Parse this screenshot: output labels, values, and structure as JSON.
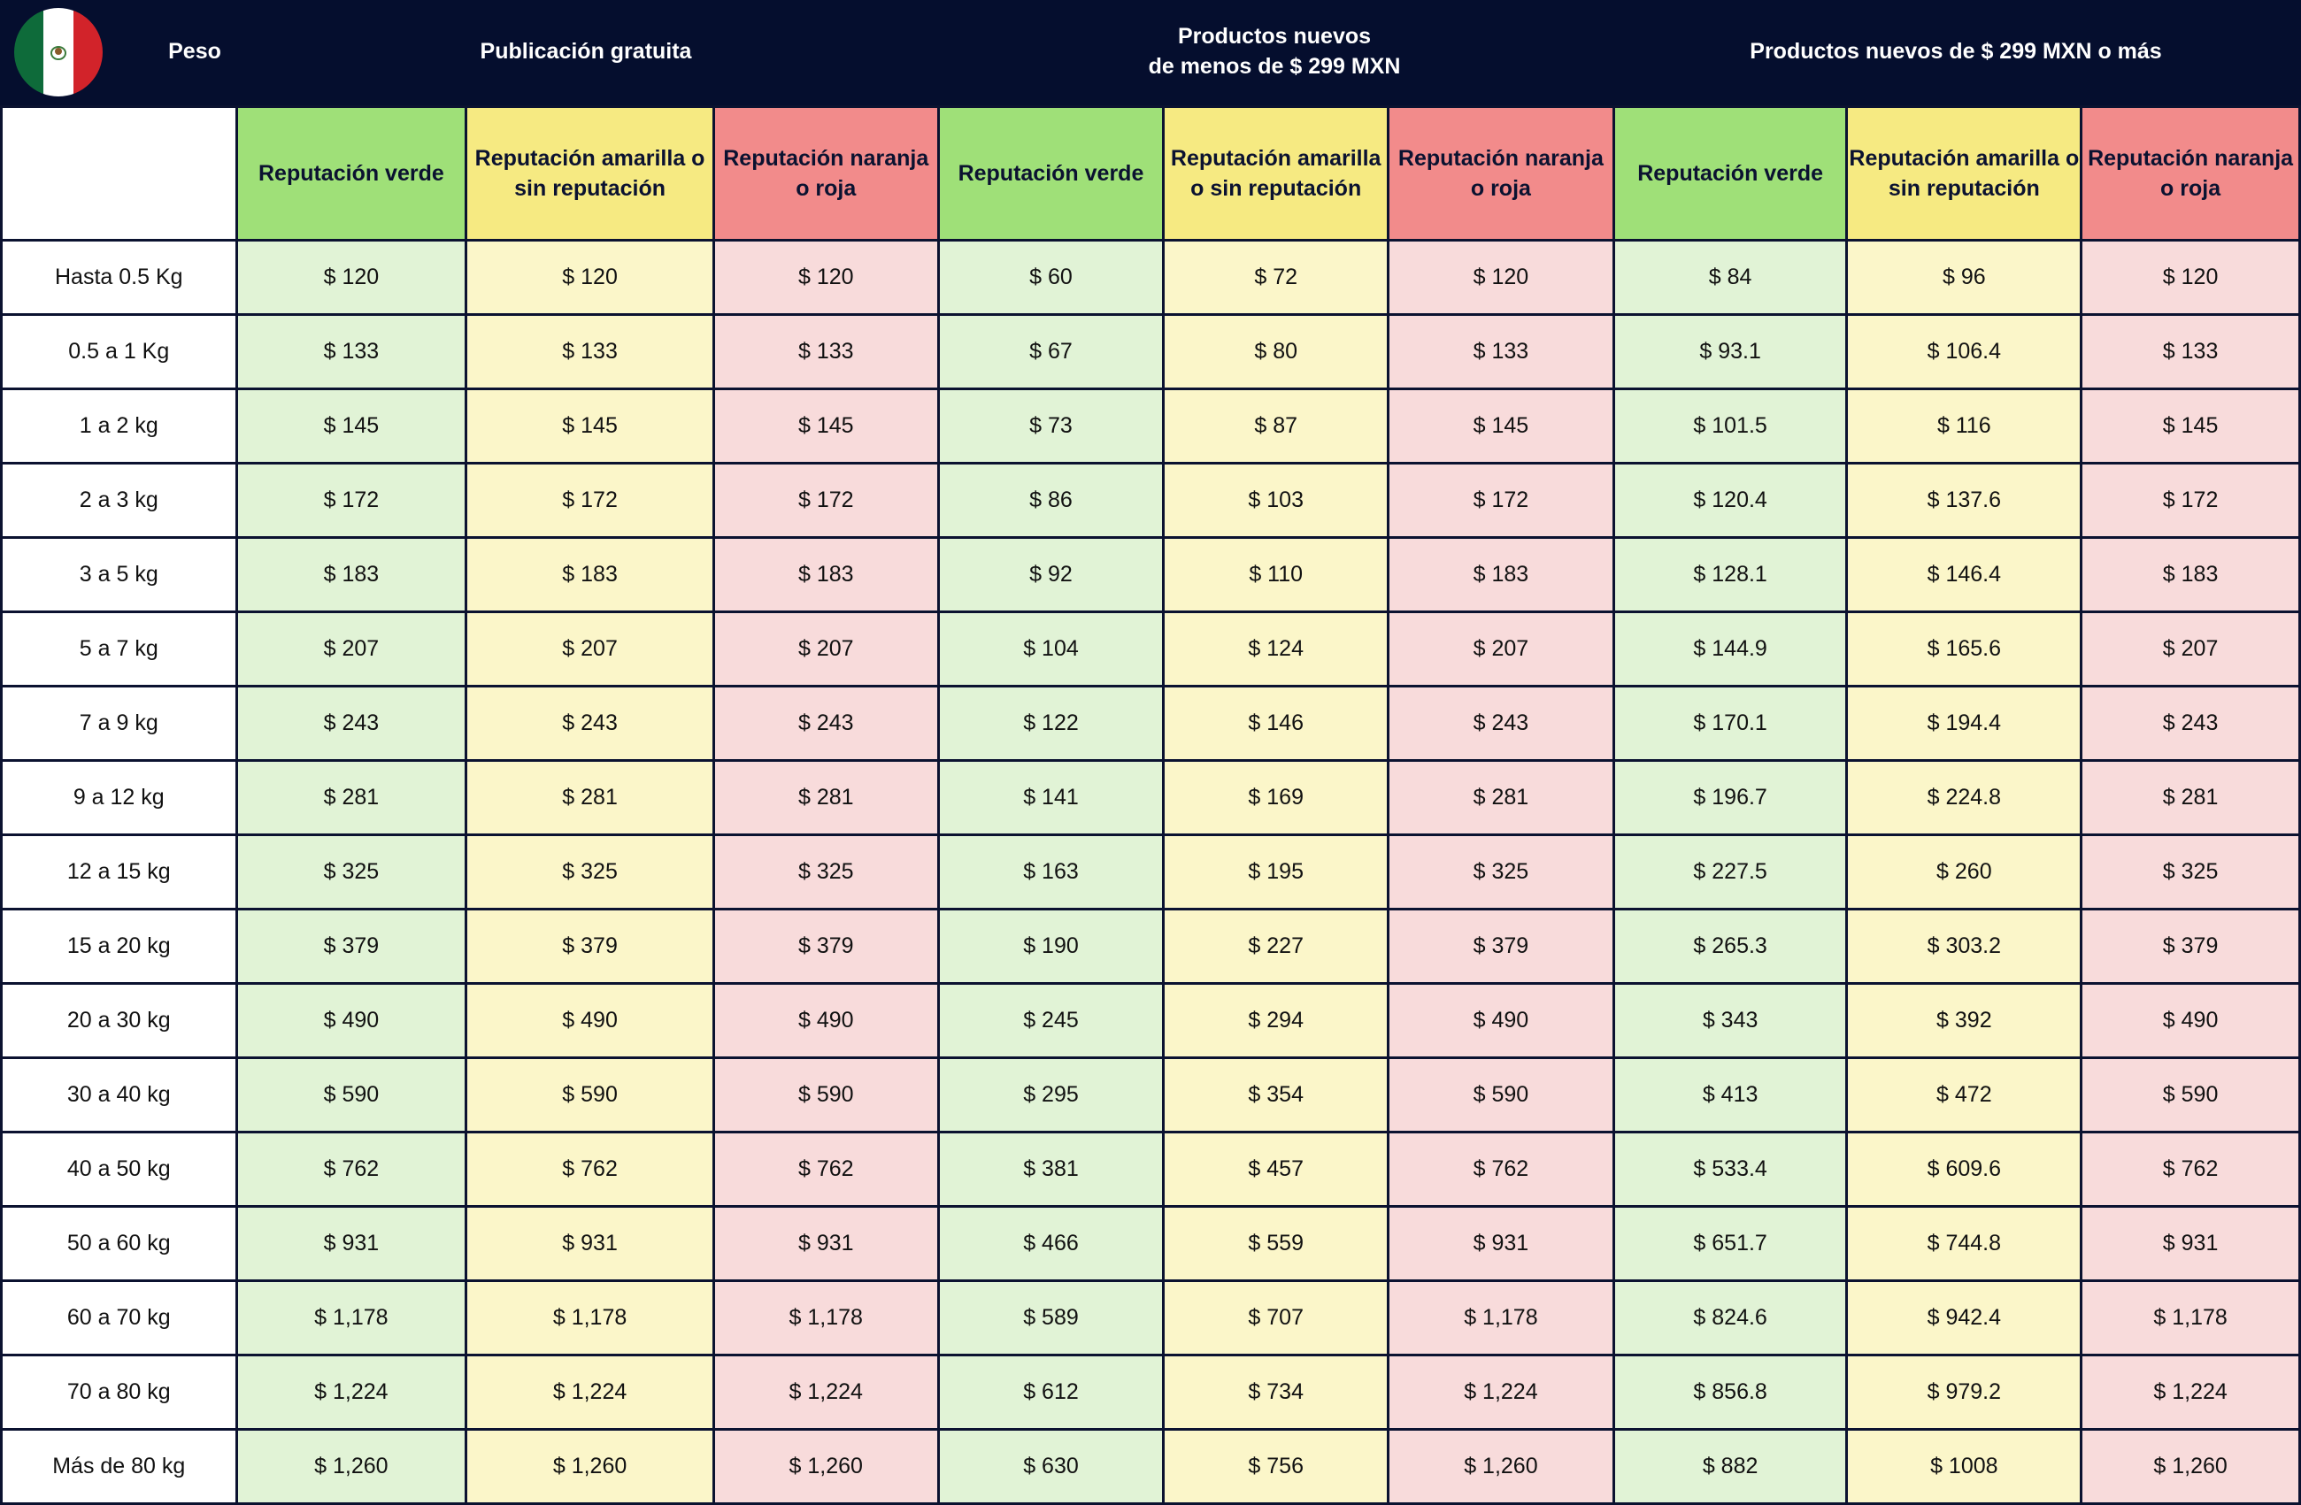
{
  "header": {
    "peso": "Peso",
    "publicacion_gratuita": "Publicación gratuita",
    "productos_menos_line1": "Productos nuevos",
    "productos_menos_line2": "de menos de $ 299 MXN",
    "productos_mas": "Productos nuevos de $ 299 MXN o más",
    "flag_icon": "mexico-flag-icon"
  },
  "colors": {
    "header_bg": "#050e2e",
    "green_header": "#9fe078",
    "yellow_header": "#f6ea82",
    "red_header": "#f28b8b",
    "green_cell": "#e1f3d6",
    "yellow_cell": "#fbf6c9",
    "red_cell": "#f8dbdb"
  },
  "columns": [
    "Reputación verde",
    "Reputación amarilla o sin reputación",
    "Reputación naranja o roja",
    "Reputación verde",
    "Reputación amarilla o sin reputación",
    "Reputación naranja o roja",
    "Reputación verde",
    "Reputación amarilla o sin reputación",
    "Reputación naranja o roja"
  ],
  "rows": [
    {
      "weight": "Hasta 0.5 Kg",
      "values": [
        "$ 120",
        "$ 120",
        "$ 120",
        "$ 60",
        "$ 72",
        "$ 120",
        "$ 84",
        "$ 96",
        "$ 120"
      ]
    },
    {
      "weight": "0.5 a 1 Kg",
      "values": [
        "$ 133",
        "$ 133",
        "$ 133",
        "$ 67",
        "$ 80",
        "$ 133",
        "$ 93.1",
        "$ 106.4",
        "$ 133"
      ]
    },
    {
      "weight": "1 a 2 kg",
      "values": [
        "$ 145",
        "$ 145",
        "$ 145",
        "$ 73",
        "$ 87",
        "$ 145",
        "$ 101.5",
        "$ 116",
        "$ 145"
      ]
    },
    {
      "weight": "2 a 3 kg",
      "values": [
        "$ 172",
        "$ 172",
        "$ 172",
        "$ 86",
        "$ 103",
        "$ 172",
        "$ 120.4",
        "$ 137.6",
        "$ 172"
      ]
    },
    {
      "weight": "3 a 5 kg",
      "values": [
        "$ 183",
        "$ 183",
        "$ 183",
        "$ 92",
        "$ 110",
        "$ 183",
        "$ 128.1",
        "$ 146.4",
        "$ 183"
      ]
    },
    {
      "weight": "5 a 7 kg",
      "values": [
        "$ 207",
        "$ 207",
        "$ 207",
        "$ 104",
        "$ 124",
        "$ 207",
        "$ 144.9",
        "$ 165.6",
        "$ 207"
      ]
    },
    {
      "weight": "7 a 9 kg",
      "values": [
        "$ 243",
        "$ 243",
        "$ 243",
        "$ 122",
        "$ 146",
        "$ 243",
        "$ 170.1",
        "$ 194.4",
        "$ 243"
      ]
    },
    {
      "weight": "9 a 12 kg",
      "values": [
        "$ 281",
        "$ 281",
        "$ 281",
        "$ 141",
        "$ 169",
        "$ 281",
        "$ 196.7",
        "$ 224.8",
        "$ 281"
      ]
    },
    {
      "weight": "12 a 15 kg",
      "values": [
        "$ 325",
        "$ 325",
        "$ 325",
        "$ 163",
        "$ 195",
        "$ 325",
        "$ 227.5",
        "$ 260",
        "$ 325"
      ]
    },
    {
      "weight": "15 a 20 kg",
      "values": [
        "$ 379",
        "$ 379",
        "$ 379",
        "$ 190",
        "$ 227",
        "$ 379",
        "$ 265.3",
        "$ 303.2",
        "$ 379"
      ]
    },
    {
      "weight": "20 a 30 kg",
      "values": [
        "$ 490",
        "$ 490",
        "$ 490",
        "$ 245",
        "$ 294",
        "$ 490",
        "$ 343",
        "$ 392",
        "$ 490"
      ]
    },
    {
      "weight": "30 a 40 kg",
      "values": [
        "$ 590",
        "$ 590",
        "$ 590",
        "$ 295",
        "$ 354",
        "$ 590",
        "$ 413",
        "$ 472",
        "$ 590"
      ]
    },
    {
      "weight": "40 a 50 kg",
      "values": [
        "$ 762",
        "$ 762",
        "$ 762",
        "$ 381",
        "$ 457",
        "$ 762",
        "$ 533.4",
        "$ 609.6",
        "$ 762"
      ]
    },
    {
      "weight": "50 a 60 kg",
      "values": [
        "$ 931",
        "$ 931",
        "$ 931",
        "$ 466",
        "$ 559",
        "$ 931",
        "$ 651.7",
        "$ 744.8",
        "$ 931"
      ]
    },
    {
      "weight": "60 a 70 kg",
      "values": [
        "$ 1,178",
        "$ 1,178",
        "$ 1,178",
        "$ 589",
        "$ 707",
        "$ 1,178",
        "$ 824.6",
        "$ 942.4",
        "$ 1,178"
      ]
    },
    {
      "weight": "70 a 80 kg",
      "values": [
        "$ 1,224",
        "$ 1,224",
        "$ 1,224",
        "$ 612",
        "$ 734",
        "$ 1,224",
        "$ 856.8",
        "$ 979.2",
        "$ 1,224"
      ]
    },
    {
      "weight": "Más de 80 kg",
      "values": [
        "$ 1,260",
        "$ 1,260",
        "$ 1,260",
        "$ 630",
        "$ 756",
        "$ 1,260",
        "$ 882",
        "$ 1008",
        "$ 1,260"
      ]
    }
  ]
}
